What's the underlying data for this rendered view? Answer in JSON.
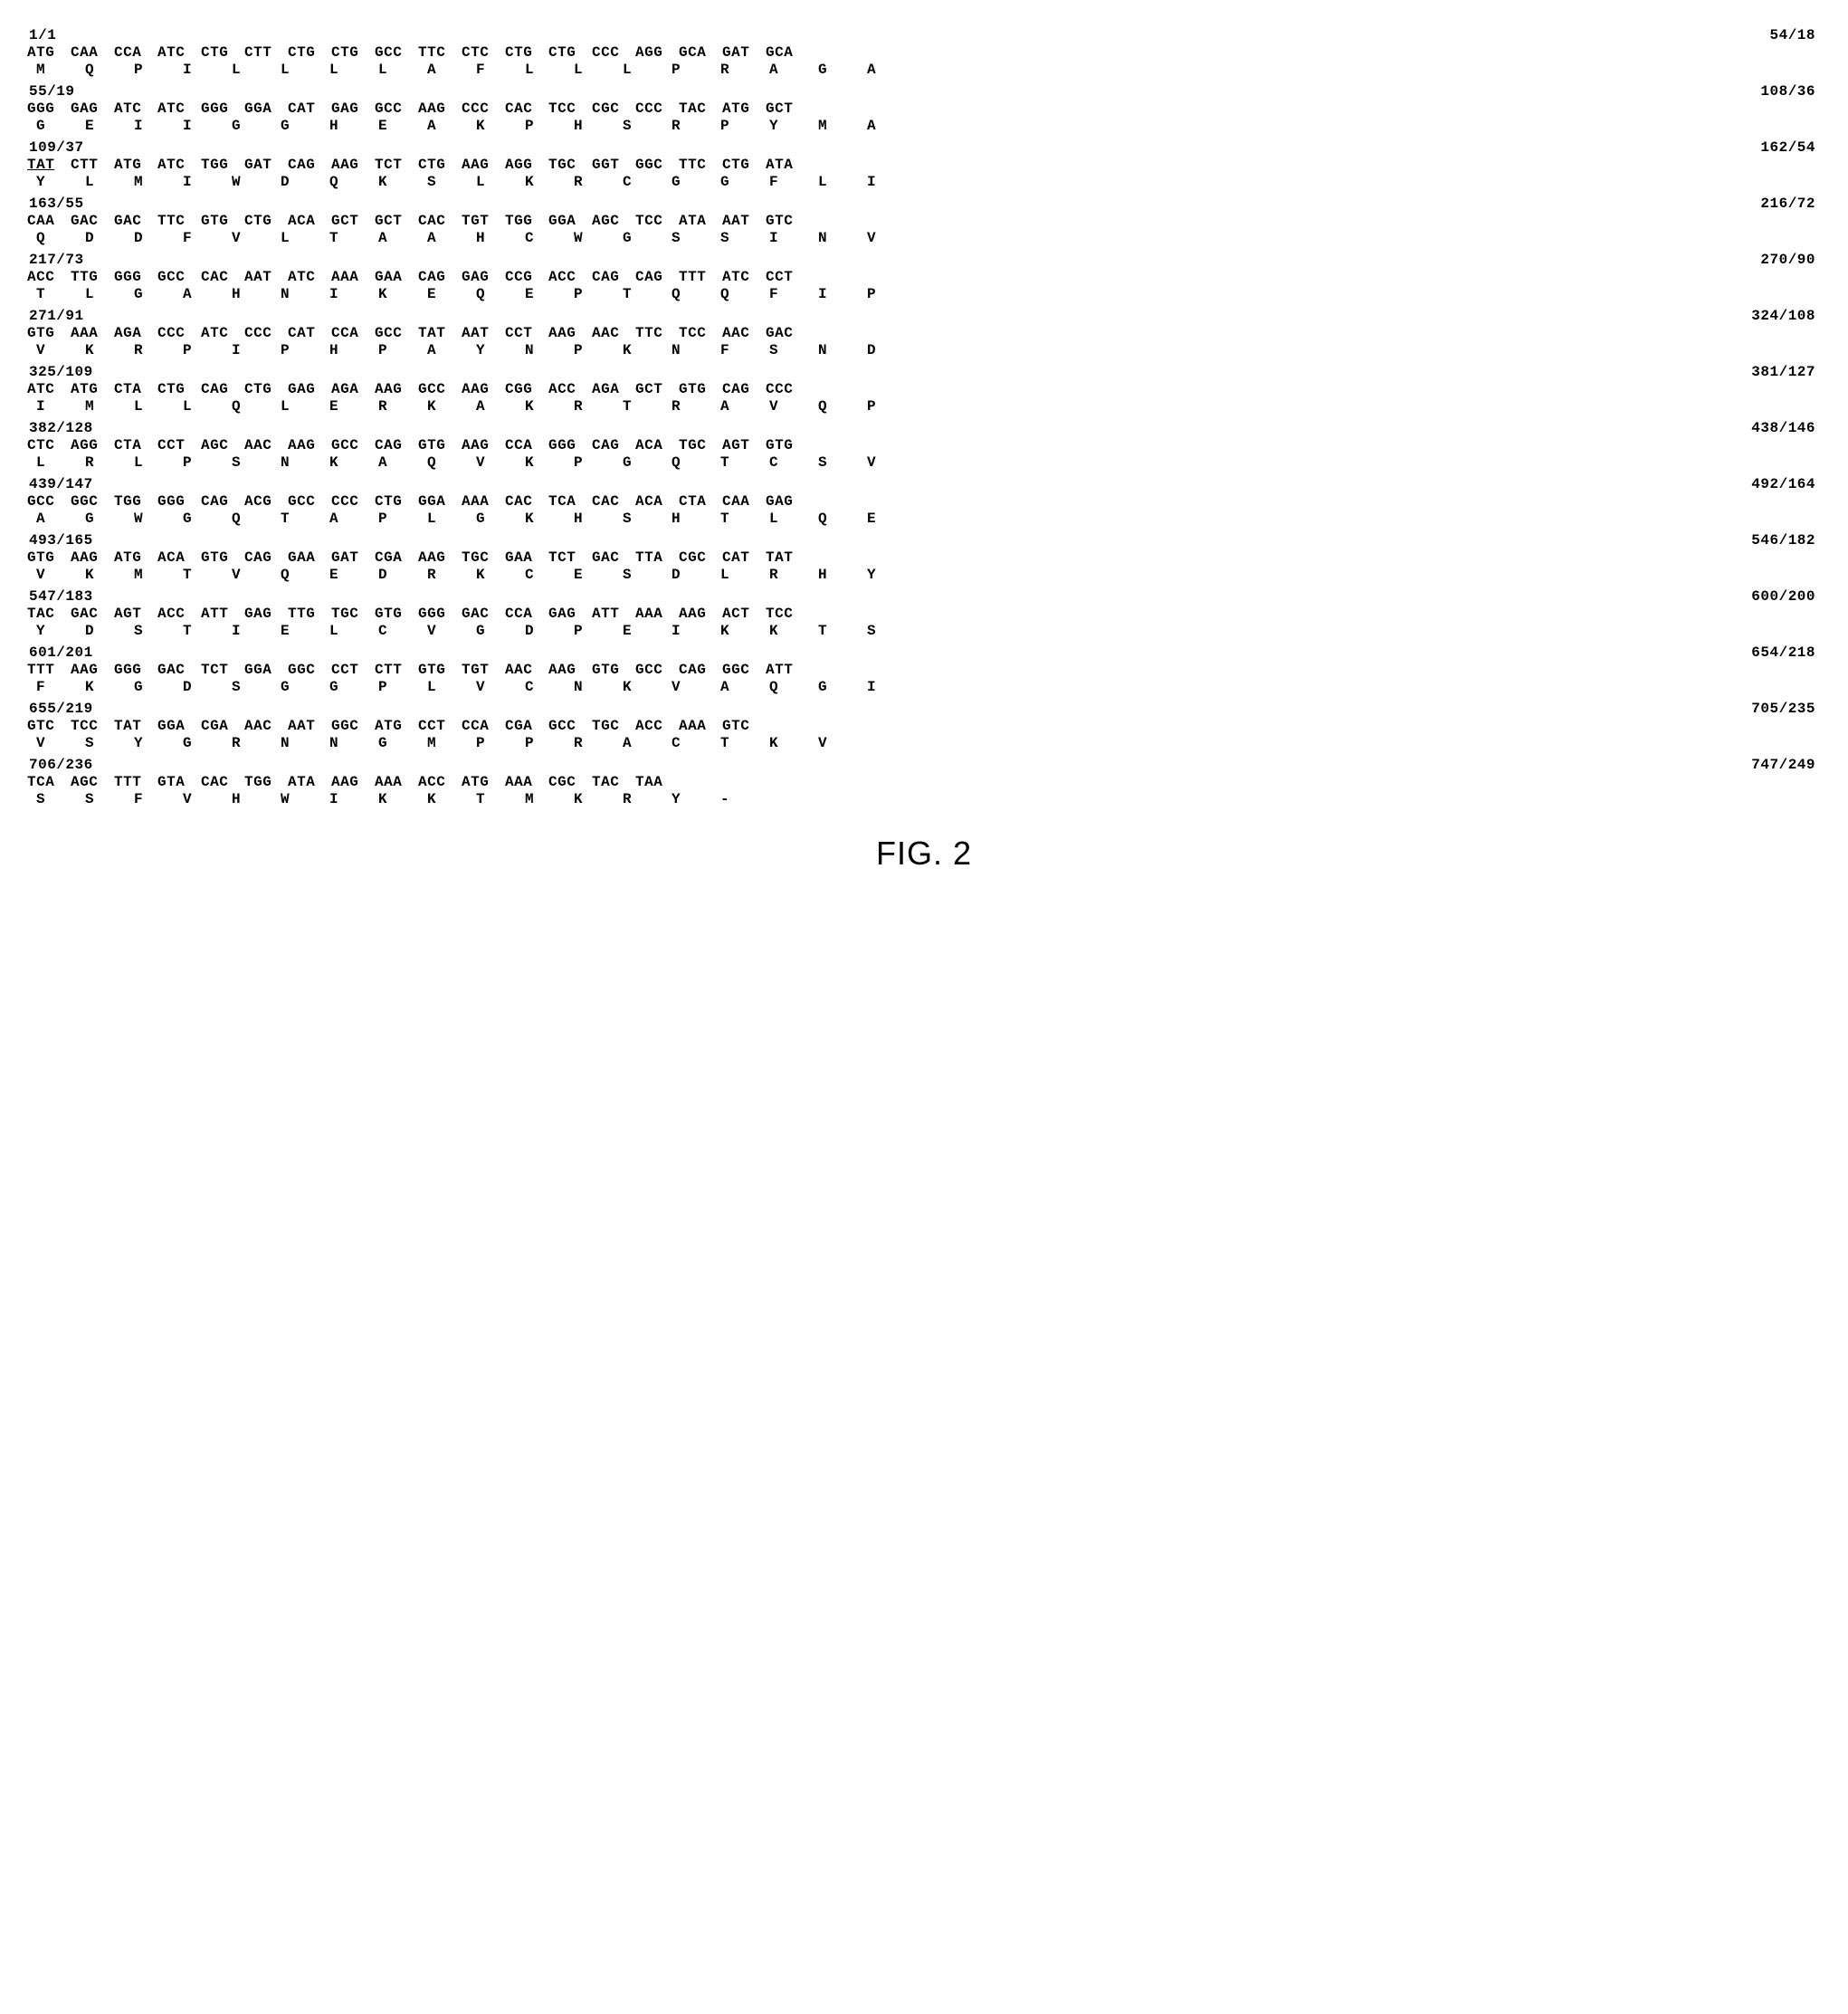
{
  "figure_label": "FIG. 2",
  "blocks": [
    {
      "start": "1/1",
      "end": "54/18",
      "codons": [
        "ATG",
        "CAA",
        "CCA",
        "ATC",
        "CTG",
        "CTT",
        "CTG",
        "CTG",
        "GCC",
        "TTC",
        "CTC",
        "CTG",
        "CTG",
        "CCC",
        "AGG",
        "GCA",
        "GAT",
        "GCA"
      ],
      "aas": [
        "M",
        "Q",
        "P",
        "I",
        "L",
        "L",
        "L",
        "L",
        "A",
        "F",
        "L",
        "L",
        "L",
        "P",
        "R",
        "A",
        "G",
        "A"
      ]
    },
    {
      "start": "55/19",
      "end": "108/36",
      "codons": [
        "GGG",
        "GAG",
        "ATC",
        "ATC",
        "GGG",
        "GGA",
        "CAT",
        "GAG",
        "GCC",
        "AAG",
        "CCC",
        "CAC",
        "TCC",
        "CGC",
        "CCC",
        "TAC",
        "ATG",
        "GCT"
      ],
      "aas": [
        "G",
        "E",
        "I",
        "I",
        "G",
        "G",
        "H",
        "E",
        "A",
        "K",
        "P",
        "H",
        "S",
        "R",
        "P",
        "Y",
        "M",
        "A"
      ]
    },
    {
      "start": "109/37",
      "end": "162/54",
      "codons": [
        "TAT",
        "CTT",
        "ATG",
        "ATC",
        "TGG",
        "GAT",
        "CAG",
        "AAG",
        "TCT",
        "CTG",
        "AAG",
        "AGG",
        "TGC",
        "GGT",
        "GGC",
        "TTC",
        "CTG",
        "ATA"
      ],
      "aas": [
        "Y",
        "L",
        "M",
        "I",
        "W",
        "D",
        "Q",
        "K",
        "S",
        "L",
        "K",
        "R",
        "C",
        "G",
        "G",
        "F",
        "L",
        "I"
      ],
      "underline_start": true
    },
    {
      "start": "163/55",
      "end": "216/72",
      "codons": [
        "CAA",
        "GAC",
        "GAC",
        "TTC",
        "GTG",
        "CTG",
        "ACA",
        "GCT",
        "GCT",
        "CAC",
        "TGT",
        "TGG",
        "GGA",
        "AGC",
        "TCC",
        "ATA",
        "AAT",
        "GTC"
      ],
      "aas": [
        "Q",
        "D",
        "D",
        "F",
        "V",
        "L",
        "T",
        "A",
        "A",
        "H",
        "C",
        "W",
        "G",
        "S",
        "S",
        "I",
        "N",
        "V"
      ]
    },
    {
      "start": "217/73",
      "end": "270/90",
      "codons": [
        "ACC",
        "TTG",
        "GGG",
        "GCC",
        "CAC",
        "AAT",
        "ATC",
        "AAA",
        "GAA",
        "CAG",
        "GAG",
        "CCG",
        "ACC",
        "CAG",
        "CAG",
        "TTT",
        "ATC",
        "CCT"
      ],
      "aas": [
        "T",
        "L",
        "G",
        "A",
        "H",
        "N",
        "I",
        "K",
        "E",
        "Q",
        "E",
        "P",
        "T",
        "Q",
        "Q",
        "F",
        "I",
        "P"
      ]
    },
    {
      "start": "271/91",
      "end": "324/108",
      "codons": [
        "GTG",
        "AAA",
        "AGA",
        "CCC",
        "ATC",
        "CCC",
        "CAT",
        "CCA",
        "GCC",
        "TAT",
        "AAT",
        "CCT",
        "AAG",
        "AAC",
        "TTC",
        "TCC",
        "AAC",
        "GAC"
      ],
      "aas": [
        "V",
        "K",
        "R",
        "P",
        "I",
        "P",
        "H",
        "P",
        "A",
        "Y",
        "N",
        "P",
        "K",
        "N",
        "F",
        "S",
        "N",
        "D"
      ]
    },
    {
      "start": "325/109",
      "end": "381/127",
      "codons": [
        "ATC",
        "ATG",
        "CTA",
        "CTG",
        "CAG",
        "CTG",
        "GAG",
        "AGA",
        "AAG",
        "GCC",
        "AAG",
        "CGG",
        "ACC",
        "AGA",
        "GCT",
        "GTG",
        "CAG",
        "CCC"
      ],
      "aas": [
        "I",
        "M",
        "L",
        "L",
        "Q",
        "L",
        "E",
        "R",
        "K",
        "A",
        "K",
        "R",
        "T",
        "R",
        "A",
        "V",
        "Q",
        "P"
      ]
    },
    {
      "start": "382/128",
      "end": "438/146",
      "codons": [
        "CTC",
        "AGG",
        "CTA",
        "CCT",
        "AGC",
        "AAC",
        "AAG",
        "GCC",
        "CAG",
        "GTG",
        "AAG",
        "CCA",
        "GGG",
        "CAG",
        "ACA",
        "TGC",
        "AGT",
        "GTG"
      ],
      "aas": [
        "L",
        "R",
        "L",
        "P",
        "S",
        "N",
        "K",
        "A",
        "Q",
        "V",
        "K",
        "P",
        "G",
        "Q",
        "T",
        "C",
        "S",
        "V"
      ]
    },
    {
      "start": "439/147",
      "end": "492/164",
      "codons": [
        "GCC",
        "GGC",
        "TGG",
        "GGG",
        "CAG",
        "ACG",
        "GCC",
        "CCC",
        "CTG",
        "GGA",
        "AAA",
        "CAC",
        "TCA",
        "CAC",
        "ACA",
        "CTA",
        "CAA",
        "GAG"
      ],
      "aas": [
        "A",
        "G",
        "W",
        "G",
        "Q",
        "T",
        "A",
        "P",
        "L",
        "G",
        "K",
        "H",
        "S",
        "H",
        "T",
        "L",
        "Q",
        "E"
      ]
    },
    {
      "start": "493/165",
      "end": "546/182",
      "codons": [
        "GTG",
        "AAG",
        "ATG",
        "ACA",
        "GTG",
        "CAG",
        "GAA",
        "GAT",
        "CGA",
        "AAG",
        "TGC",
        "GAA",
        "TCT",
        "GAC",
        "TTA",
        "CGC",
        "CAT",
        "TAT"
      ],
      "aas": [
        "V",
        "K",
        "M",
        "T",
        "V",
        "Q",
        "E",
        "D",
        "R",
        "K",
        "C",
        "E",
        "S",
        "D",
        "L",
        "R",
        "H",
        "Y"
      ]
    },
    {
      "start": "547/183",
      "end": "600/200",
      "codons": [
        "TAC",
        "GAC",
        "AGT",
        "ACC",
        "ATT",
        "GAG",
        "TTG",
        "TGC",
        "GTG",
        "GGG",
        "GAC",
        "CCA",
        "GAG",
        "ATT",
        "AAA",
        "AAG",
        "ACT",
        "TCC"
      ],
      "aas": [
        "Y",
        "D",
        "S",
        "T",
        "I",
        "E",
        "L",
        "C",
        "V",
        "G",
        "D",
        "P",
        "E",
        "I",
        "K",
        "K",
        "T",
        "S"
      ]
    },
    {
      "start": "601/201",
      "end": "654/218",
      "codons": [
        "TTT",
        "AAG",
        "GGG",
        "GAC",
        "TCT",
        "GGA",
        "GGC",
        "CCT",
        "CTT",
        "GTG",
        "TGT",
        "AAC",
        "AAG",
        "GTG",
        "GCC",
        "CAG",
        "GGC",
        "ATT"
      ],
      "aas": [
        "F",
        "K",
        "G",
        "D",
        "S",
        "G",
        "G",
        "P",
        "L",
        "V",
        "C",
        "N",
        "K",
        "V",
        "A",
        "Q",
        "G",
        "I"
      ]
    },
    {
      "start": "655/219",
      "end": "705/235",
      "codons": [
        "GTC",
        "TCC",
        "TAT",
        "GGA",
        "CGA",
        "AAC",
        "AAT",
        "GGC",
        "ATG",
        "CCT",
        "CCA",
        "CGA",
        "GCC",
        "TGC",
        "ACC",
        "AAA",
        "GTC",
        ""
      ],
      "aas": [
        "V",
        "S",
        "Y",
        "G",
        "R",
        "N",
        "N",
        "G",
        "M",
        "P",
        "P",
        "R",
        "A",
        "C",
        "T",
        "K",
        "V",
        ""
      ]
    },
    {
      "start": "706/236",
      "end": "747/249",
      "codons": [
        "TCA",
        "AGC",
        "TTT",
        "GTA",
        "CAC",
        "TGG",
        "ATA",
        "AAG",
        "AAA",
        "ACC",
        "ATG",
        "AAA",
        "CGC",
        "TAC",
        "TAA",
        "",
        "",
        ""
      ],
      "aas": [
        "S",
        "S",
        "F",
        "V",
        "H",
        "W",
        "I",
        "K",
        "K",
        "T",
        "M",
        "K",
        "R",
        "Y",
        "-",
        "",
        "",
        ""
      ]
    }
  ]
}
